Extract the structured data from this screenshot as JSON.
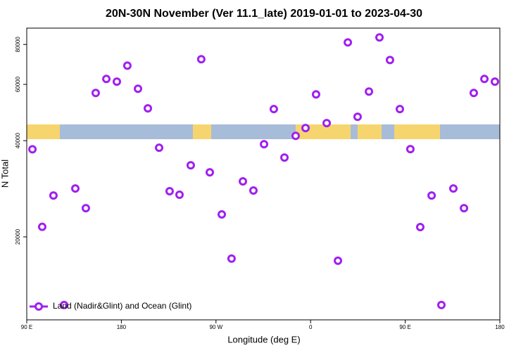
{
  "chart_data": {
    "type": "scatter",
    "title": "20N-30N November (Ver 11.1_late)   2019-01-01 to 2023-04-30",
    "xlabel": "Longitude (deg E)",
    "ylabel": "N Total",
    "xlim": [
      90,
      540
    ],
    "xticks": [
      {
        "value": 90,
        "label": "90 E"
      },
      {
        "value": 180,
        "label": "180"
      },
      {
        "value": 270,
        "label": "90 W"
      },
      {
        "value": 360,
        "label": "0"
      },
      {
        "value": 450,
        "label": "90 E"
      },
      {
        "value": 540,
        "label": "180"
      }
    ],
    "ylim": [
      11000,
      90000
    ],
    "ylog": true,
    "yticks": [
      20000,
      40000,
      60000,
      80000
    ],
    "legend": "bottom-left",
    "series": [
      {
        "name": "Land (Nadir&Glint) and Ocean (Glint)",
        "color": "#a020f0",
        "x": [
          95.4,
          104.7,
          115.4,
          125.5,
          136.2,
          146.2,
          155.6,
          165.7,
          175.7,
          185.7,
          195.8,
          205.2,
          215.9,
          225.9,
          235.3,
          246.0,
          256.0,
          264.1,
          275.5,
          284.8,
          295.6,
          305.6,
          315.7,
          325.0,
          335.1,
          345.8,
          355.2,
          365.2,
          375.3,
          386.0,
          395.4,
          404.7,
          415.5,
          425.5,
          435.5,
          444.9,
          454.9,
          464.3,
          475.1,
          484.4,
          495.8,
          505.9,
          515.2,
          525.3,
          535.3
        ],
        "values": [
          37600,
          21500,
          26950,
          12240,
          28350,
          24600,
          56400,
          62400,
          61200,
          68700,
          58150,
          50480,
          38010,
          27790,
          27100,
          33500,
          71920,
          31840,
          23510,
          17100,
          29830,
          27930,
          39000,
          50220,
          35420,
          41420,
          43810,
          55850,
          45390,
          16840,
          81200,
          47500,
          56970,
          84150,
          71530,
          50220,
          37630,
          21470,
          26950,
          12240,
          28350,
          24600,
          56400,
          62400,
          61200
        ]
      }
    ]
  }
}
